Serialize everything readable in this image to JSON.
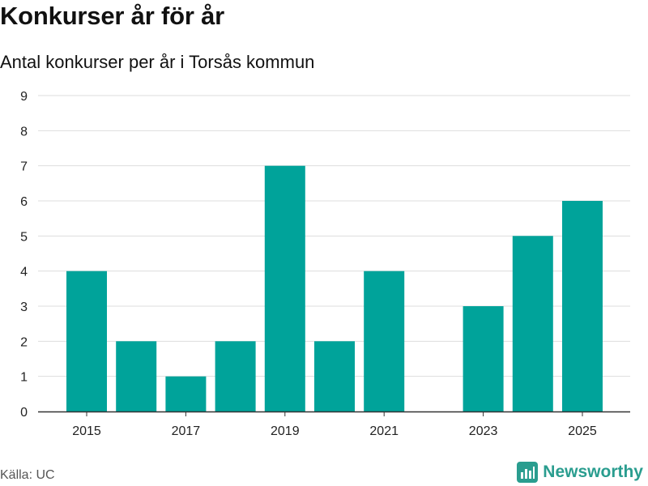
{
  "header": {
    "title": "Konkurser år för år",
    "subtitle": "Antal konkurser per år i Torsås kommun"
  },
  "footer": {
    "source": "Källa: UC",
    "brand": "Newsworthy",
    "brand_icon": "newsworthy-logo-icon"
  },
  "colors": {
    "bar": "#00a39a",
    "grid": "#dddddd",
    "axis": "#333333",
    "brand": "#2a9d8f"
  },
  "chart_data": {
    "type": "bar",
    "title": "Konkurser år för år",
    "subtitle": "Antal konkurser per år i Torsås kommun",
    "xlabel": "",
    "ylabel": "",
    "categories": [
      "2015",
      "2016",
      "2017",
      "2018",
      "2019",
      "2020",
      "2021",
      "2022",
      "2023",
      "2024",
      "2025"
    ],
    "values": [
      4,
      2,
      1,
      2,
      7,
      2,
      4,
      0,
      3,
      5,
      6
    ],
    "ylim": [
      0,
      9
    ],
    "yticks": [
      "0",
      "1",
      "2",
      "3",
      "4",
      "5",
      "6",
      "7",
      "8",
      "9"
    ],
    "xtick_labels": [
      "2015",
      "2017",
      "2019",
      "2021",
      "2023",
      "2025"
    ],
    "grid": true,
    "legend": "none"
  }
}
